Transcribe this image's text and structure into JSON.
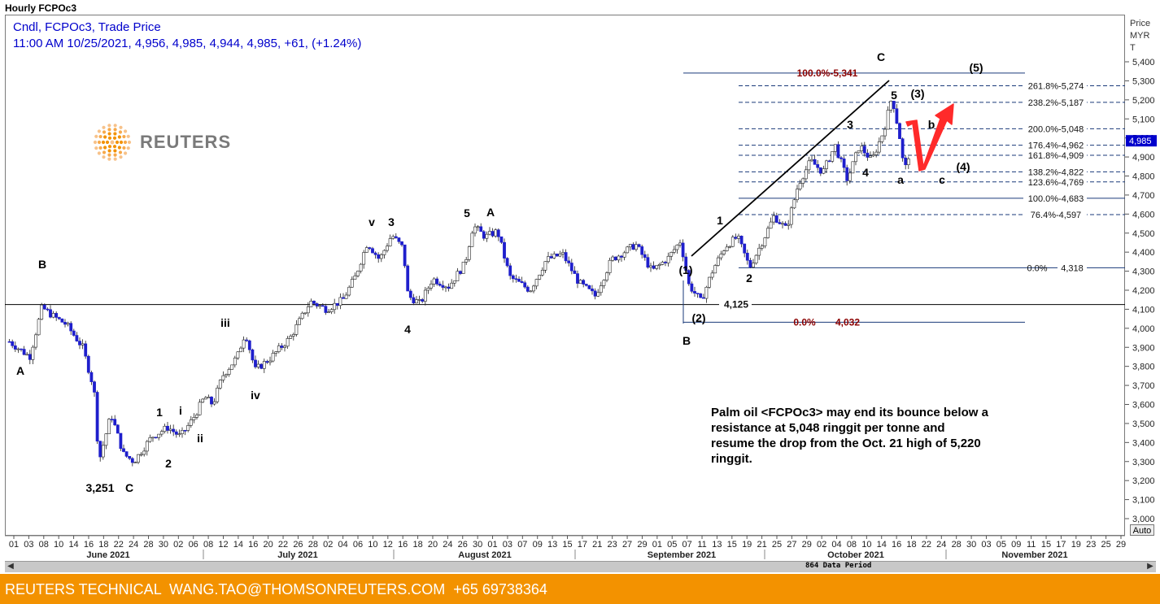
{
  "window": {
    "title": "Hourly FCPOc3"
  },
  "legend": {
    "line1": "Cndl, FCPOc3, Trade Price",
    "line2": "11:00 AM 10/25/2021, 4,956, 4,985, 4,944, 4,985, +61, (+1.24%)"
  },
  "logo": {
    "text": "REUTERS"
  },
  "axis": {
    "price_title": [
      "Price",
      "MYR",
      "T"
    ]
  },
  "buttons": {
    "auto": "Auto"
  },
  "scrollbar": {
    "period_label": "864 Data Period",
    "left_icon": "arrow-left-icon",
    "right_icon": "arrow-right-icon"
  },
  "footer": {
    "text": "REUTERS TECHNICAL  WANG.TAO@THOMSONREUTERS.COM  +65 69738364"
  },
  "colors": {
    "accent": "#f39200",
    "up_candle": "#ffffff",
    "down_candle": "#1f1fcc",
    "legend": "#0000cc",
    "fib_dark": "#8b0000",
    "arrow": "#ff2a2a"
  },
  "chart_data": {
    "type": "candlestick",
    "title": "Hourly FCPOc3",
    "ylabel": "Price MYR T",
    "ylim": [
      3000,
      5460
    ],
    "y_ticks": [
      "3,000",
      "3,100",
      "3,200",
      "3,300",
      "3,400",
      "3,500",
      "3,600",
      "3,700",
      "3,800",
      "3,900",
      "4,000",
      "4,100",
      "4,200",
      "4,300",
      "4,400",
      "4,500",
      "4,600",
      "4,700",
      "4,800",
      "4,900",
      "5,000",
      "5,100",
      "5,200",
      "5,300",
      "5,400"
    ],
    "last_price": "4,985",
    "x_ticks": [
      "01",
      "03",
      "08",
      "10",
      "14",
      "16",
      "18",
      "22",
      "24",
      "28",
      "30",
      "02",
      "06",
      "08",
      "12",
      "14",
      "16",
      "20",
      "22",
      "26",
      "28",
      "02",
      "04",
      "06",
      "10",
      "12",
      "16",
      "18",
      "20",
      "24",
      "26",
      "30",
      "01",
      "03",
      "07",
      "09",
      "13",
      "15",
      "17",
      "21",
      "23",
      "27",
      "29",
      "01",
      "05",
      "07",
      "11",
      "13",
      "15",
      "19",
      "21",
      "25",
      "27",
      "29",
      "02",
      "04",
      "08",
      "10",
      "14",
      "16",
      "18",
      "22",
      "24",
      "28",
      "30",
      "03",
      "05",
      "09",
      "11",
      "15",
      "17",
      "19",
      "23",
      "25",
      "29"
    ],
    "months": [
      "June 2021",
      "July 2021",
      "August 2021",
      "September 2021",
      "October 2021",
      "November 2021"
    ],
    "price_path": [
      [
        0,
        3930
      ],
      [
        25,
        3850
      ],
      [
        40,
        4110
      ],
      [
        55,
        4060
      ],
      [
        70,
        4020
      ],
      [
        90,
        3900
      ],
      [
        104,
        3680
      ],
      [
        110,
        3300
      ],
      [
        125,
        3550
      ],
      [
        140,
        3340
      ],
      [
        153,
        3300
      ],
      [
        175,
        3430
      ],
      [
        195,
        3480
      ],
      [
        210,
        3430
      ],
      [
        225,
        3520
      ],
      [
        240,
        3640
      ],
      [
        250,
        3600
      ],
      [
        262,
        3750
      ],
      [
        280,
        3850
      ],
      [
        290,
        3980
      ],
      [
        302,
        3780
      ],
      [
        320,
        3840
      ],
      [
        345,
        3950
      ],
      [
        370,
        4140
      ],
      [
        390,
        4100
      ],
      [
        410,
        4150
      ],
      [
        425,
        4270
      ],
      [
        440,
        4450
      ],
      [
        455,
        4360
      ],
      [
        470,
        4490
      ],
      [
        484,
        4420
      ],
      [
        490,
        4170
      ],
      [
        505,
        4130
      ],
      [
        520,
        4260
      ],
      [
        540,
        4220
      ],
      [
        560,
        4340
      ],
      [
        570,
        4540
      ],
      [
        585,
        4480
      ],
      [
        600,
        4510
      ],
      [
        615,
        4270
      ],
      [
        640,
        4200
      ],
      [
        660,
        4360
      ],
      [
        680,
        4390
      ],
      [
        700,
        4240
      ],
      [
        720,
        4170
      ],
      [
        740,
        4360
      ],
      [
        770,
        4440
      ],
      [
        790,
        4300
      ],
      [
        810,
        4370
      ],
      [
        825,
        4460
      ],
      [
        835,
        4230
      ],
      [
        850,
        4140
      ],
      [
        865,
        4310
      ],
      [
        880,
        4430
      ],
      [
        895,
        4480
      ],
      [
        910,
        4320
      ],
      [
        925,
        4450
      ],
      [
        940,
        4590
      ],
      [
        955,
        4520
      ],
      [
        970,
        4760
      ],
      [
        985,
        4880
      ],
      [
        1000,
        4820
      ],
      [
        1015,
        4960
      ],
      [
        1030,
        4780
      ],
      [
        1045,
        4960
      ],
      [
        1060,
        4880
      ],
      [
        1075,
        5040
      ],
      [
        1085,
        5220
      ],
      [
        1095,
        4990
      ],
      [
        1100,
        4820
      ],
      [
        1110,
        4985
      ]
    ],
    "fib_levels": [
      {
        "label": "100.0%-5,341",
        "value": 5341,
        "group": "outer"
      },
      {
        "label": "261.8%-5,274",
        "value": 5274,
        "group": "inner"
      },
      {
        "label": "238.2%-5,187",
        "value": 5187,
        "group": "inner"
      },
      {
        "label": "200.0%-5,048",
        "value": 5048,
        "group": "inner"
      },
      {
        "label": "176.4%-4,962",
        "value": 4962,
        "group": "inner"
      },
      {
        "label": "161.8%-4,909",
        "value": 4909,
        "group": "inner"
      },
      {
        "label": "138.2%-4,822",
        "value": 4822,
        "group": "inner"
      },
      {
        "label": "123.6%-4,769",
        "value": 4769,
        "group": "inner"
      },
      {
        "label": "100.0%-4,683",
        "value": 4683,
        "group": "inner"
      },
      {
        "label": "76.4%-4,597",
        "value": 4597,
        "group": "inner"
      },
      {
        "label": "0.0%",
        "value": 4318,
        "group": "inner"
      },
      {
        "label": "4,318",
        "value": 4318,
        "group": "inner-value"
      },
      {
        "label": "0.0%",
        "value": 4032,
        "group": "outer"
      },
      {
        "label": "4,032",
        "value": 4032,
        "group": "outer-value"
      }
    ],
    "support_line": {
      "value": 4125,
      "label": "4,125"
    },
    "wave_labels": [
      "A",
      "B",
      "3,251",
      "C",
      "1",
      "i",
      "ii",
      "2",
      "iii",
      "iv",
      "v",
      "3",
      "4",
      "5",
      "A",
      "(1)",
      "(2)",
      "B",
      "1",
      "2",
      "3",
      "4",
      "5",
      "C",
      "(3)",
      "a",
      "b",
      "c",
      "(4)",
      "(5)"
    ],
    "annotation": "Palm oil <FCPOc3> may end its bounce below a resistance at 5,048 ringgit per tonne and resume the drop from the Oct. 21 high of 5,220 ringgit."
  }
}
